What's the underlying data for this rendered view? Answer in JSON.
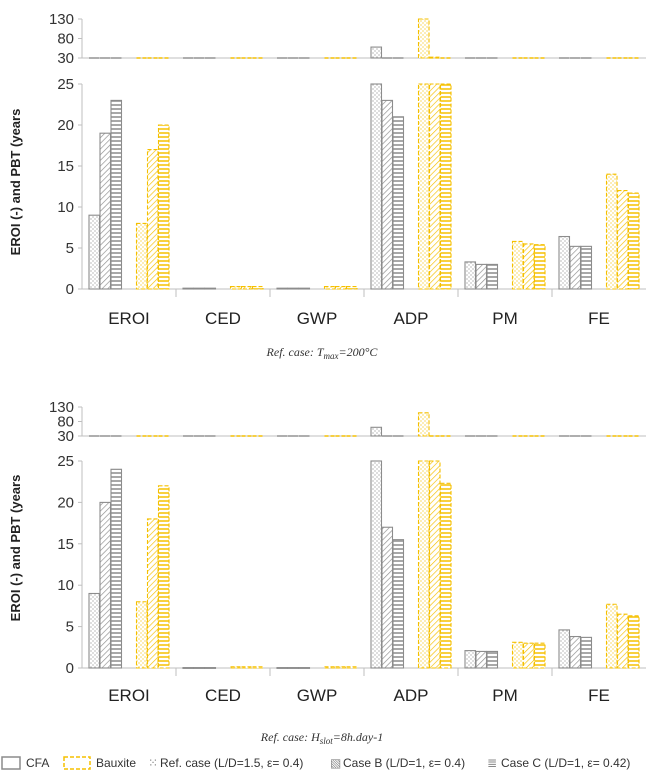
{
  "colors": {
    "cfa": "#8c8c8c",
    "bauxite": "#f5c000",
    "axis": "#bfbfbf"
  },
  "legend": {
    "cfa": "CFA",
    "bauxite": "Bauxite",
    "ref_symbol": "⁙",
    "ref_label": "Ref. case (L/D=1.5, ε= 0.4)",
    "caseb_symbol": "▧",
    "caseb_label": "Case B (L/D=1, ε= 0.4)",
    "casec_symbol": "≣",
    "casec_label": "Case C (L/D=1, ε= 0.42)"
  },
  "chart_data": [
    {
      "type": "bar",
      "ylabel": "EROI (-)  and PBT (years",
      "caption": "Ref. case: T",
      "caption_sub": "max",
      "caption_rest": "=200°C",
      "categories": [
        "EROI",
        "CED",
        "GWP",
        "ADP",
        "PM",
        "FE"
      ],
      "y_ticks_lower": [
        0,
        5,
        10,
        15,
        20,
        25
      ],
      "y_ticks_upper": [
        30,
        80,
        130
      ],
      "ylim": [
        0,
        130
      ],
      "series": [
        {
          "name": "CFA – Ref. case",
          "material": "cfa",
          "pattern": "ref",
          "values": [
            9,
            0.1,
            0.1,
            58,
            3.3,
            6.4
          ]
        },
        {
          "name": "CFA – Case B",
          "material": "cfa",
          "pattern": "b",
          "values": [
            19,
            0.1,
            0.1,
            23,
            3.0,
            5.2
          ]
        },
        {
          "name": "CFA – Case C",
          "material": "cfa",
          "pattern": "c",
          "values": [
            23,
            0.1,
            0.1,
            21,
            3.0,
            5.2
          ]
        },
        {
          "name": "Bauxite – Ref. case",
          "material": "bauxite",
          "pattern": "ref",
          "values": [
            8,
            0.3,
            0.3,
            135,
            5.8,
            14.0
          ]
        },
        {
          "name": "Bauxite – Case B",
          "material": "bauxite",
          "pattern": "b",
          "values": [
            17,
            0.3,
            0.3,
            32,
            5.5,
            12.0
          ]
        },
        {
          "name": "Bauxite – Case C",
          "material": "bauxite",
          "pattern": "c",
          "values": [
            20,
            0.3,
            0.3,
            30,
            5.4,
            11.7
          ]
        }
      ]
    },
    {
      "type": "bar",
      "ylabel": "EROI (-)  and PBT (years",
      "caption": "Ref. case: H",
      "caption_sub": "slot",
      "caption_rest": "=8h.day-1",
      "categories": [
        "EROI",
        "CED",
        "GWP",
        "ADP",
        "PM",
        "FE"
      ],
      "y_ticks_lower": [
        0,
        5,
        10,
        15,
        20,
        25
      ],
      "y_ticks_upper": [
        30,
        80,
        130
      ],
      "ylim": [
        0,
        130
      ],
      "series": [
        {
          "name": "CFA – Ref. case",
          "material": "cfa",
          "pattern": "ref",
          "values": [
            9,
            0.05,
            0.05,
            60,
            2.1,
            4.6
          ]
        },
        {
          "name": "CFA – Case B",
          "material": "cfa",
          "pattern": "b",
          "values": [
            20,
            0.05,
            0.05,
            17,
            2.0,
            3.8
          ]
        },
        {
          "name": "CFA – Case C",
          "material": "cfa",
          "pattern": "c",
          "values": [
            24,
            0.05,
            0.05,
            15.5,
            2.0,
            3.7
          ]
        },
        {
          "name": "Bauxite – Ref. case",
          "material": "bauxite",
          "pattern": "ref",
          "values": [
            8,
            0.15,
            0.15,
            110,
            3.1,
            7.7
          ]
        },
        {
          "name": "Bauxite – Case B",
          "material": "bauxite",
          "pattern": "b",
          "values": [
            18,
            0.15,
            0.15,
            25,
            3.0,
            6.5
          ]
        },
        {
          "name": "Bauxite – Case C",
          "material": "bauxite",
          "pattern": "c",
          "values": [
            22,
            0.15,
            0.15,
            22.3,
            3.0,
            6.3
          ]
        }
      ]
    }
  ]
}
